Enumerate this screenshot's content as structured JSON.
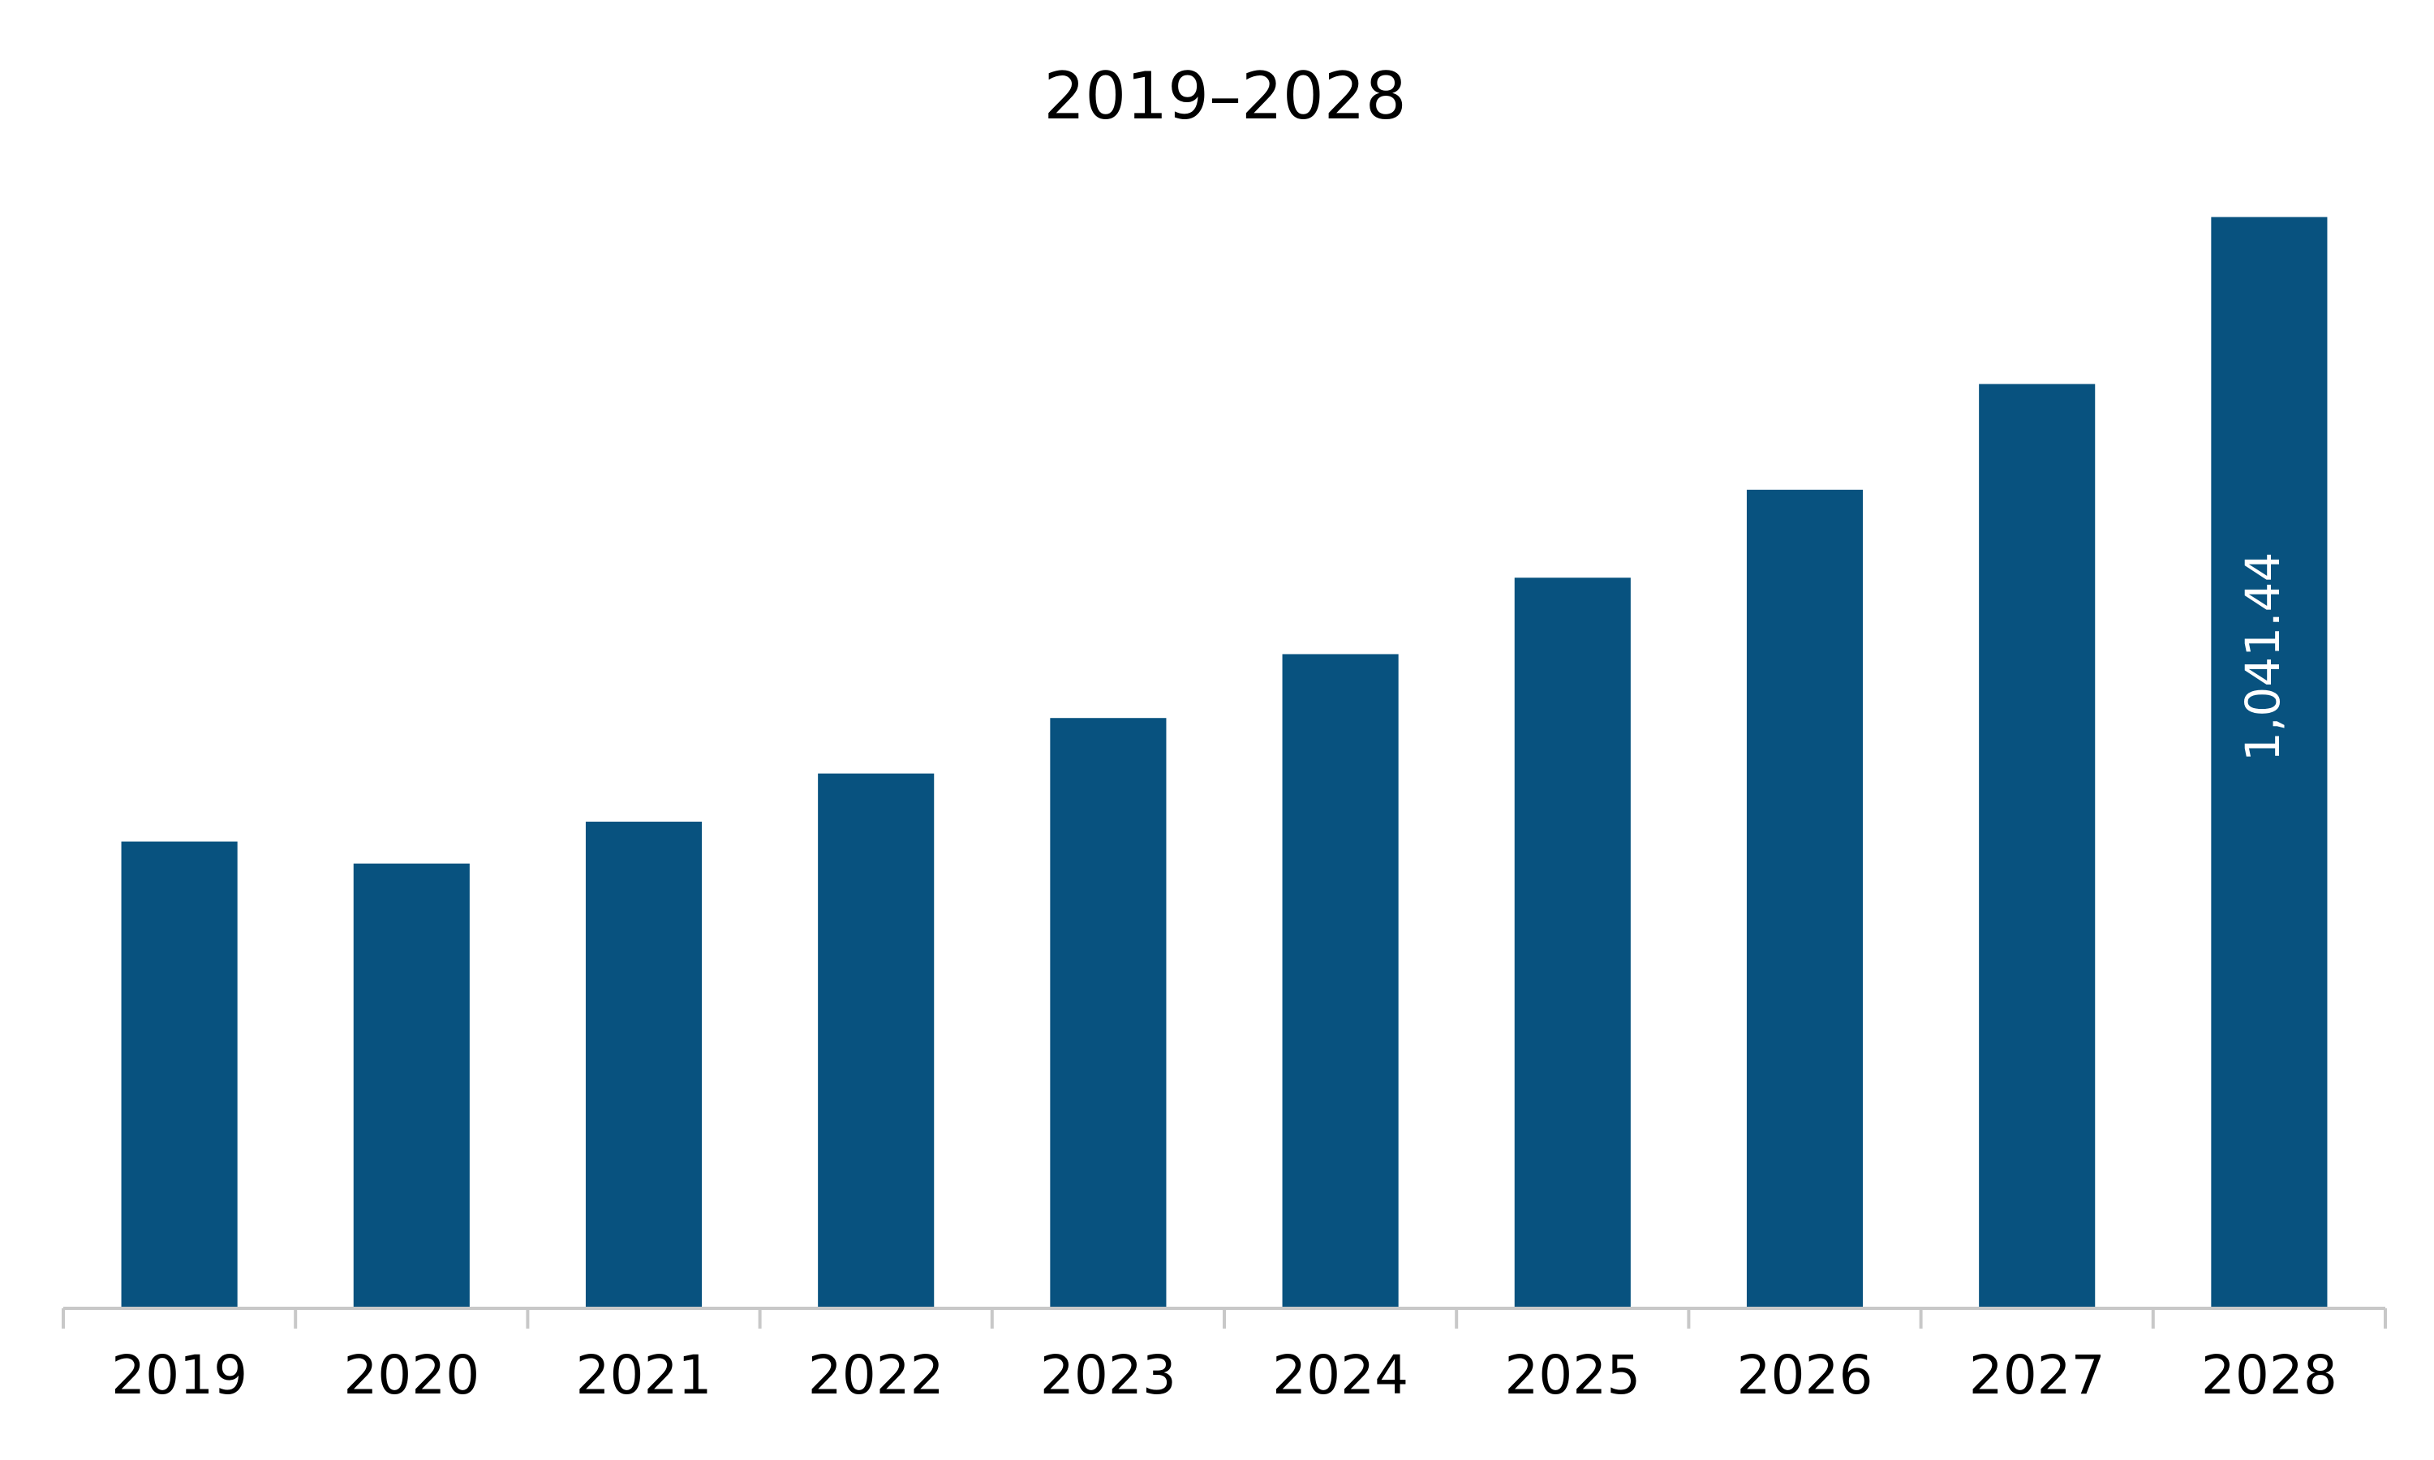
{
  "chart_data": {
    "type": "bar",
    "title": "2019–2028",
    "xlabel": "",
    "ylabel": "",
    "categories": [
      "2019",
      "2020",
      "2021",
      "2022",
      "2023",
      "2024",
      "2025",
      "2026",
      "2027",
      "2028"
    ],
    "values": [
      445,
      424,
      464,
      510,
      563,
      624,
      697,
      781,
      882,
      1041.44
    ],
    "data_labels": [
      "",
      "",
      "",
      "",
      "",
      "",
      "",
      "",
      "",
      "1,041.44"
    ],
    "ylim": [
      0,
      1100
    ],
    "grid": false,
    "legend": "none",
    "colors": {
      "bar": "#08527F",
      "axis": "#c8c8c8",
      "text": "#000000",
      "label_on_bar": "#ffffff"
    }
  }
}
